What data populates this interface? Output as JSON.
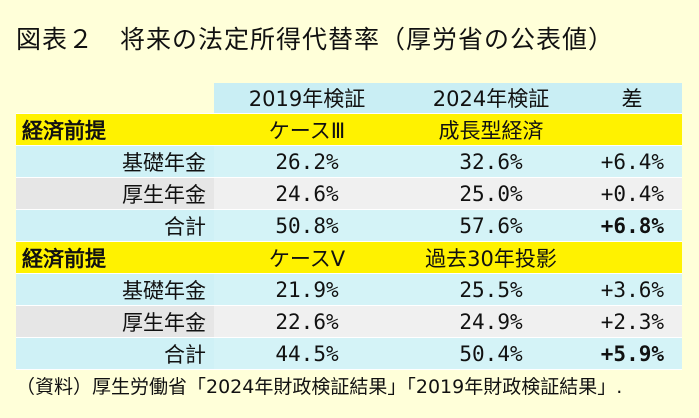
{
  "title": "図表２　将来の法定所得代替率（厚労省の公表値）",
  "columns": [
    "2019年検証",
    "2024年検証",
    "差"
  ],
  "sections": [
    {
      "label": "経済前提",
      "case_2019": "ケースⅢ",
      "case_2024": "成長型経済",
      "rows": [
        {
          "label": "基礎年金",
          "v2019": "26.2%",
          "v2024": "32.6%",
          "diff": "+6.4%"
        },
        {
          "label": "厚生年金",
          "v2019": "24.6%",
          "v2024": "25.0%",
          "diff": "+0.4%"
        },
        {
          "label": "合計",
          "v2019": "50.8%",
          "v2024": "57.6%",
          "diff": "+6.8%"
        }
      ]
    },
    {
      "label": "経済前提",
      "case_2019": "ケースⅤ",
      "case_2024": "過去30年投影",
      "rows": [
        {
          "label": "基礎年金",
          "v2019": "21.9%",
          "v2024": "25.5%",
          "diff": "+3.6%"
        },
        {
          "label": "厚生年金",
          "v2019": "22.6%",
          "v2024": "24.9%",
          "diff": "+2.3%"
        },
        {
          "label": "合計",
          "v2019": "44.5%",
          "v2024": "50.4%",
          "diff": "+5.9%"
        }
      ]
    }
  ],
  "source": "（資料）厚生労働省「2024年財政検証結果」「2019年財政検証結果」.",
  "colors": {
    "background": "#FFFFD9",
    "header": "#C9EEF4",
    "scenario": "#FFF200",
    "row_blue": "#D4F3F7",
    "row_gray": "#F0F0F0"
  }
}
